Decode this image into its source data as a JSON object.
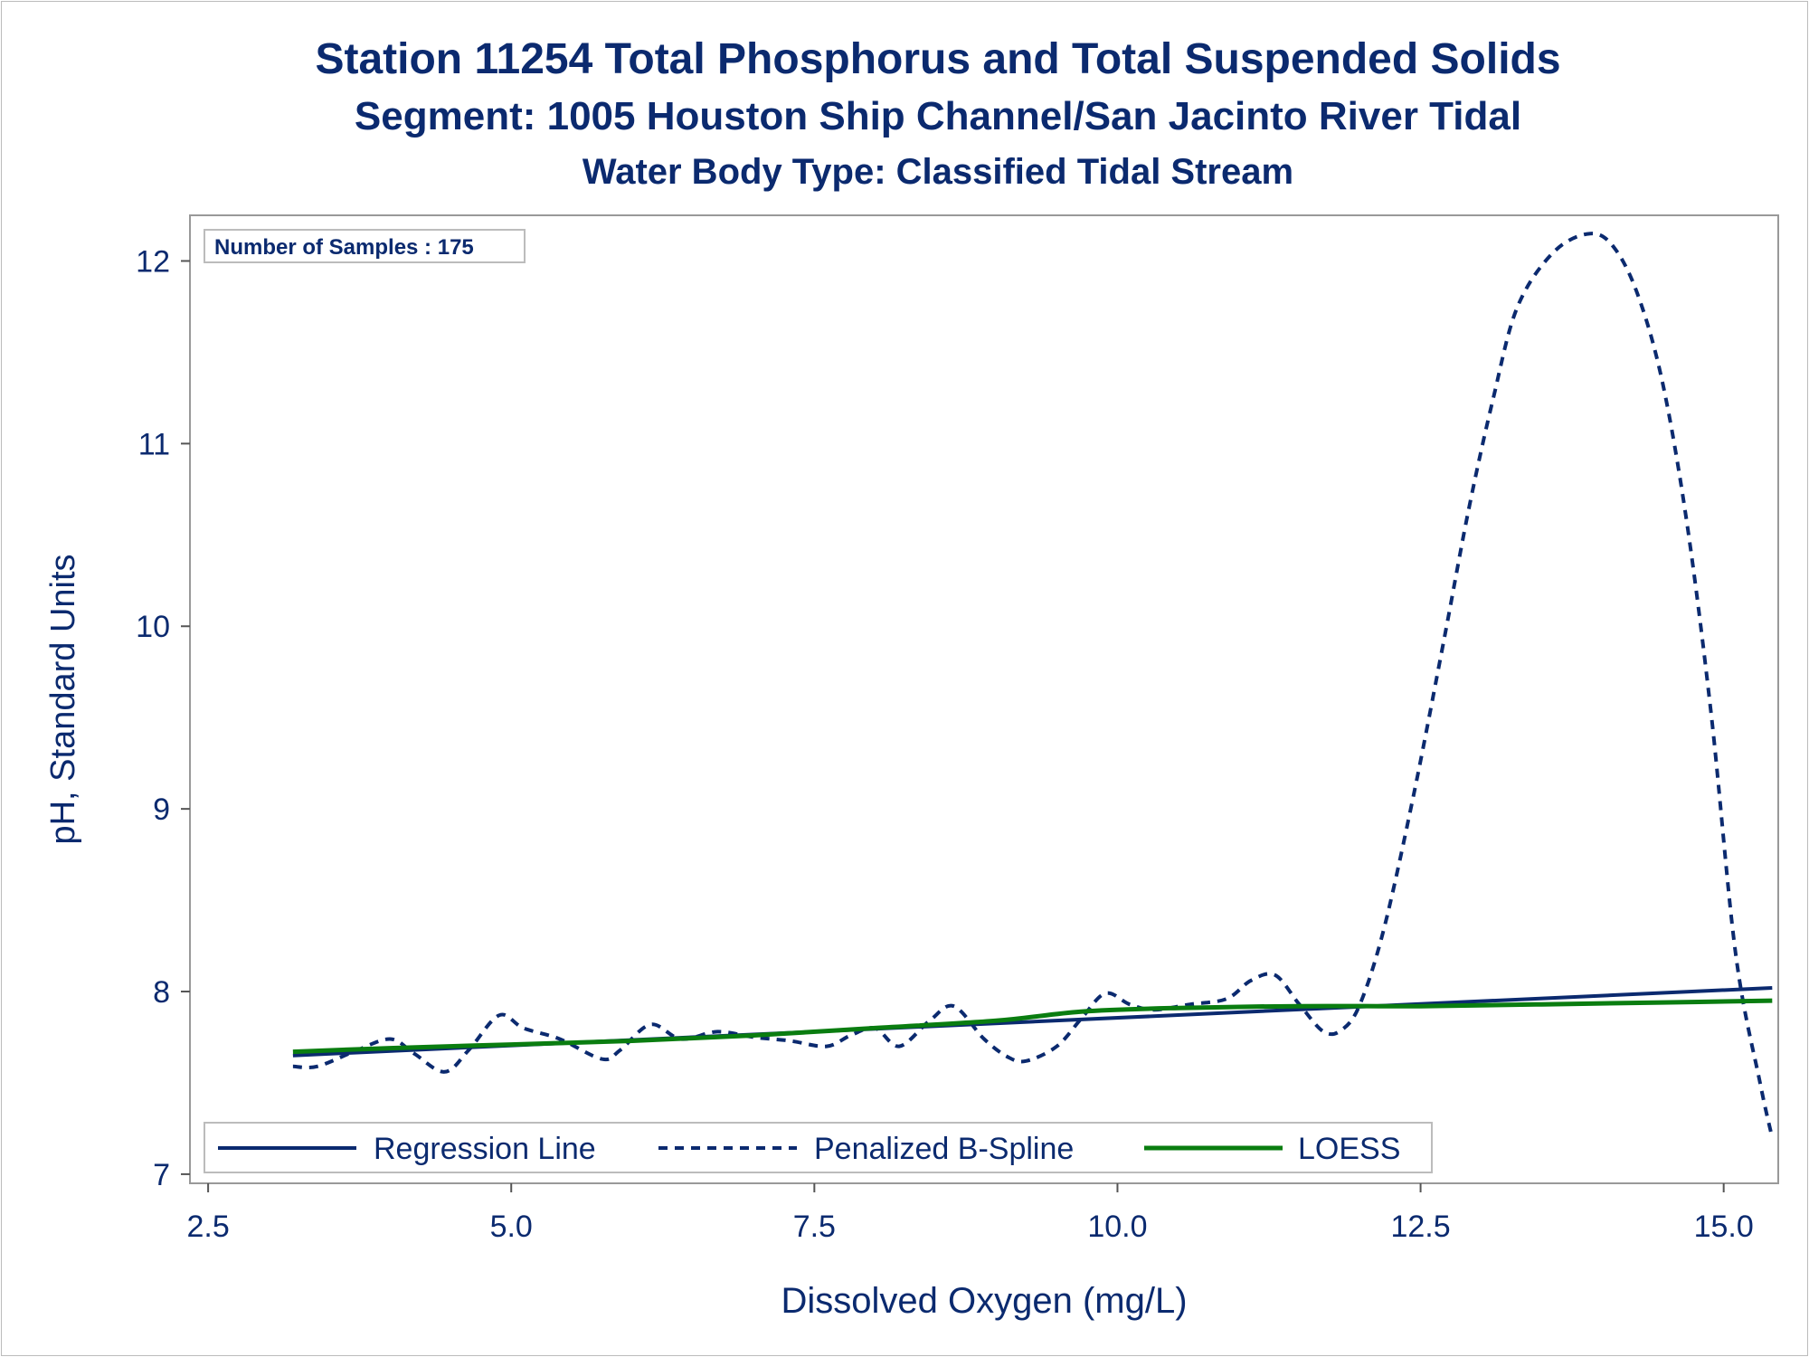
{
  "titles": {
    "line1": "Station 11254  Total Phosphorus and Total Suspended Solids",
    "line2": "Segment: 1005  Houston Ship Channel/San Jacinto River Tidal",
    "line3": "Water Body Type: Classified Tidal Stream"
  },
  "inset": {
    "samples_label": "Number of Samples : 175"
  },
  "colors": {
    "text": "#0b2a6f",
    "regression": "#0b2a6f",
    "spline": "#0b2a6f",
    "loess": "#0a7d10",
    "frame": "#999999"
  },
  "chart_data": {
    "type": "line",
    "xlabel": "Dissolved Oxygen (mg/L)",
    "ylabel": "pH, Standard Units",
    "xlim": [
      2.35,
      15.45
    ],
    "ylim": [
      6.95,
      12.25
    ],
    "xticks": [
      2.5,
      5.0,
      7.5,
      10.0,
      12.5,
      15.0
    ],
    "xtick_labels": [
      "2.5",
      "5.0",
      "7.5",
      "10.0",
      "12.5",
      "15.0"
    ],
    "yticks": [
      7,
      8,
      9,
      10,
      11,
      12
    ],
    "ytick_labels": [
      "7",
      "8",
      "9",
      "10",
      "11",
      "12"
    ],
    "grid": false,
    "legend_position": "bottom-inside",
    "series": [
      {
        "name": "Regression Line",
        "style": "solid",
        "x": [
          3.2,
          15.4
        ],
        "y": [
          7.65,
          8.02
        ]
      },
      {
        "name": "Penalized B-Spline",
        "style": "dashed",
        "x": [
          3.2,
          3.4,
          3.7,
          4.0,
          4.2,
          4.45,
          4.65,
          4.9,
          5.1,
          5.4,
          5.75,
          5.9,
          6.15,
          6.4,
          6.7,
          7.0,
          7.3,
          7.6,
          7.8,
          8.0,
          8.2,
          8.45,
          8.65,
          8.9,
          9.1,
          9.25,
          9.5,
          9.7,
          9.9,
          10.1,
          10.3,
          10.6,
          10.9,
          11.1,
          11.3,
          11.5,
          11.7,
          11.85,
          12.0,
          12.2,
          12.45,
          12.7,
          12.9,
          13.1,
          13.3,
          13.6,
          13.9,
          14.1,
          14.3,
          14.5,
          14.7,
          14.9,
          15.1,
          15.3,
          15.4
        ],
        "y": [
          7.59,
          7.59,
          7.67,
          7.74,
          7.66,
          7.56,
          7.68,
          7.87,
          7.8,
          7.74,
          7.63,
          7.68,
          7.82,
          7.74,
          7.78,
          7.75,
          7.73,
          7.7,
          7.76,
          7.8,
          7.7,
          7.84,
          7.92,
          7.74,
          7.64,
          7.62,
          7.7,
          7.85,
          7.99,
          7.93,
          7.9,
          7.93,
          7.96,
          8.06,
          8.09,
          7.93,
          7.78,
          7.79,
          7.93,
          8.35,
          9.1,
          9.95,
          10.65,
          11.25,
          11.75,
          12.05,
          12.15,
          12.07,
          11.8,
          11.32,
          10.55,
          9.5,
          8.2,
          7.5,
          7.2
        ]
      },
      {
        "name": "LOESS",
        "style": "solid",
        "x": [
          3.2,
          4.0,
          5.0,
          6.0,
          7.0,
          8.0,
          9.0,
          9.7,
          10.5,
          11.5,
          12.5,
          13.5,
          14.5,
          15.4
        ],
        "y": [
          7.67,
          7.69,
          7.71,
          7.73,
          7.76,
          7.8,
          7.84,
          7.89,
          7.91,
          7.92,
          7.92,
          7.93,
          7.94,
          7.95
        ]
      }
    ]
  }
}
